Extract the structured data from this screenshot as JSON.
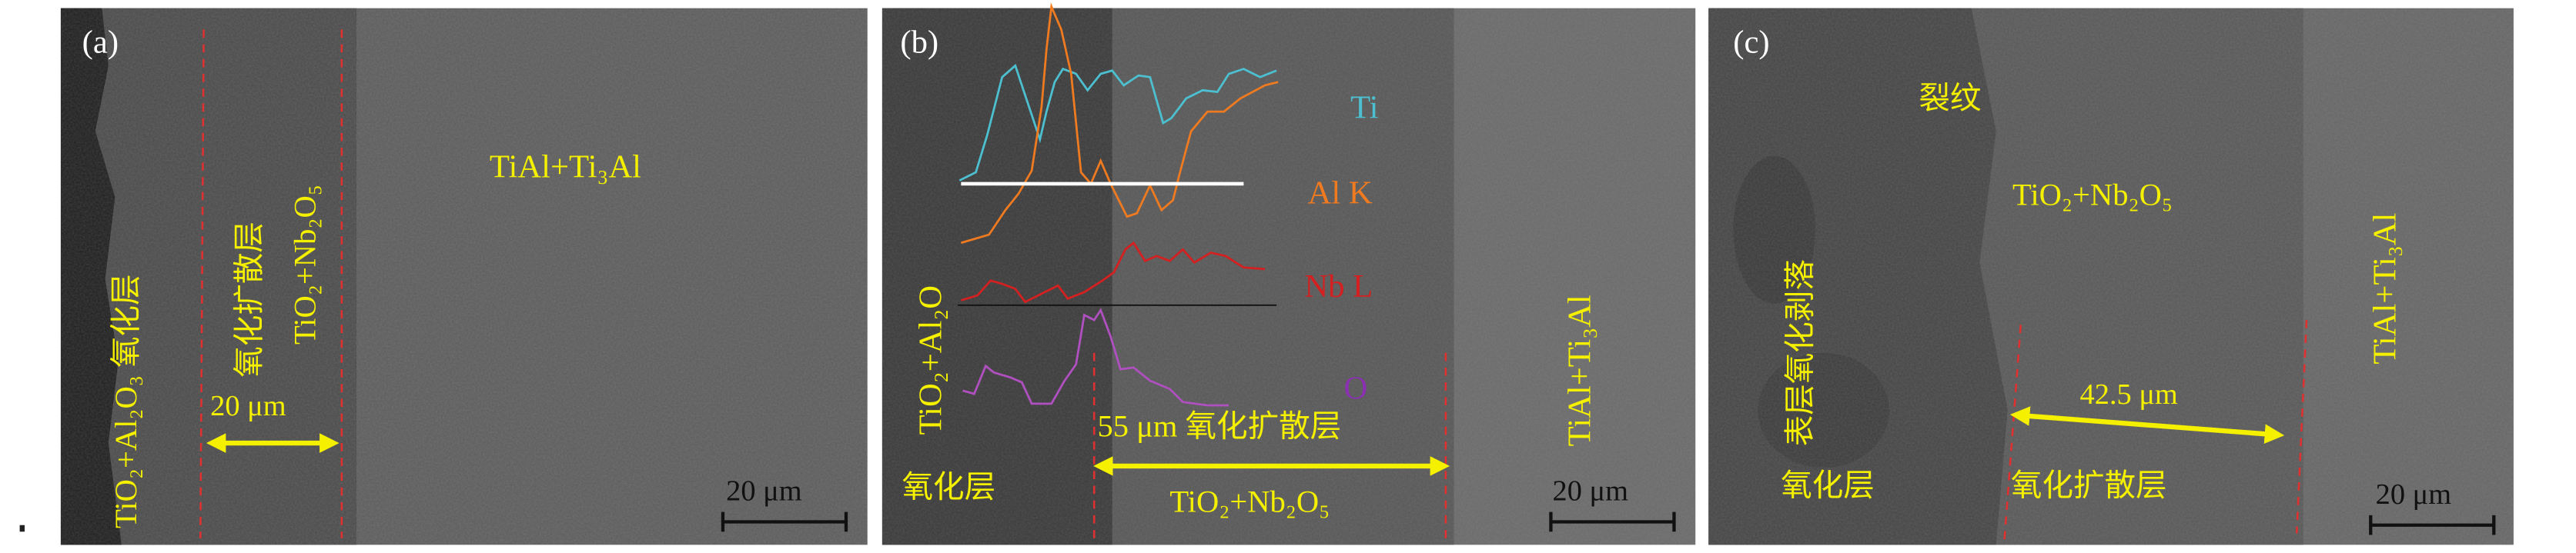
{
  "panels": {
    "a": {
      "label": "(a)",
      "oxide_layer": "TiO₂+Al₂O₃ 氧化层",
      "diffusion_layer": "氧化扩散层",
      "diffusion_phase": "TiO₂+Nb₂O₅",
      "substrate": "TiAl+Ti₃Al",
      "thickness": "20 μm",
      "scale_bar": "20 μm"
    },
    "b": {
      "label": "(b)",
      "oxide_phase": "TiO₂+Al₂O",
      "legend": [
        {
          "label": "Ti",
          "color": "#4cc0d0"
        },
        {
          "label": "Al K",
          "color": "#f07a20"
        },
        {
          "label": "Nb L",
          "color": "#d42020"
        },
        {
          "label": "O",
          "color": "#8a30b0"
        }
      ],
      "thickness_label": "55 μm 氧化扩散层",
      "diffusion_phase": "TiO₂+Nb₂O₅",
      "oxide_layer": "氧化层",
      "substrate": "TiAl+Ti₃Al",
      "scale_bar": "20 μm"
    },
    "c": {
      "label": "(c)",
      "crack": "裂纹",
      "diffusion_phase": "TiO₂+Nb₂O₅",
      "spallation": "表层氧化剥落",
      "substrate": "TiAl+Ti₃Al",
      "thickness": "42.5 μm",
      "oxide_layer": "氧化层",
      "diffusion_layer": "氧化扩散层",
      "scale_bar": "20 μm"
    }
  },
  "colors": {
    "annotation": "#f4f000",
    "boundary": "#e03030"
  }
}
